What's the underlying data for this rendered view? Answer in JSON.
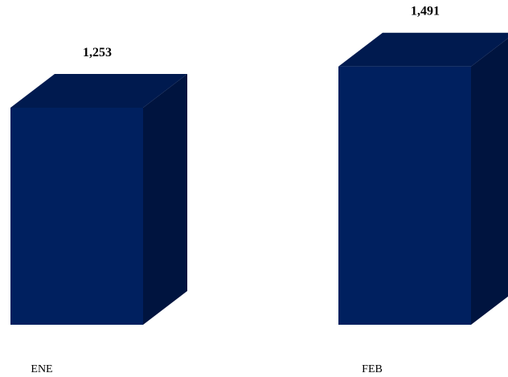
{
  "chart_data": {
    "type": "bar",
    "style": "3d-column",
    "categories": [
      "ENE",
      "FEB"
    ],
    "values": [
      1253,
      1491
    ],
    "data_labels": [
      "1,253",
      "1,491"
    ],
    "title": "",
    "xlabel": "",
    "ylabel": "",
    "legend": "none",
    "grid": false,
    "colors": {
      "front": "#00205F",
      "top": "#001A4F",
      "side": "#00143F"
    }
  }
}
